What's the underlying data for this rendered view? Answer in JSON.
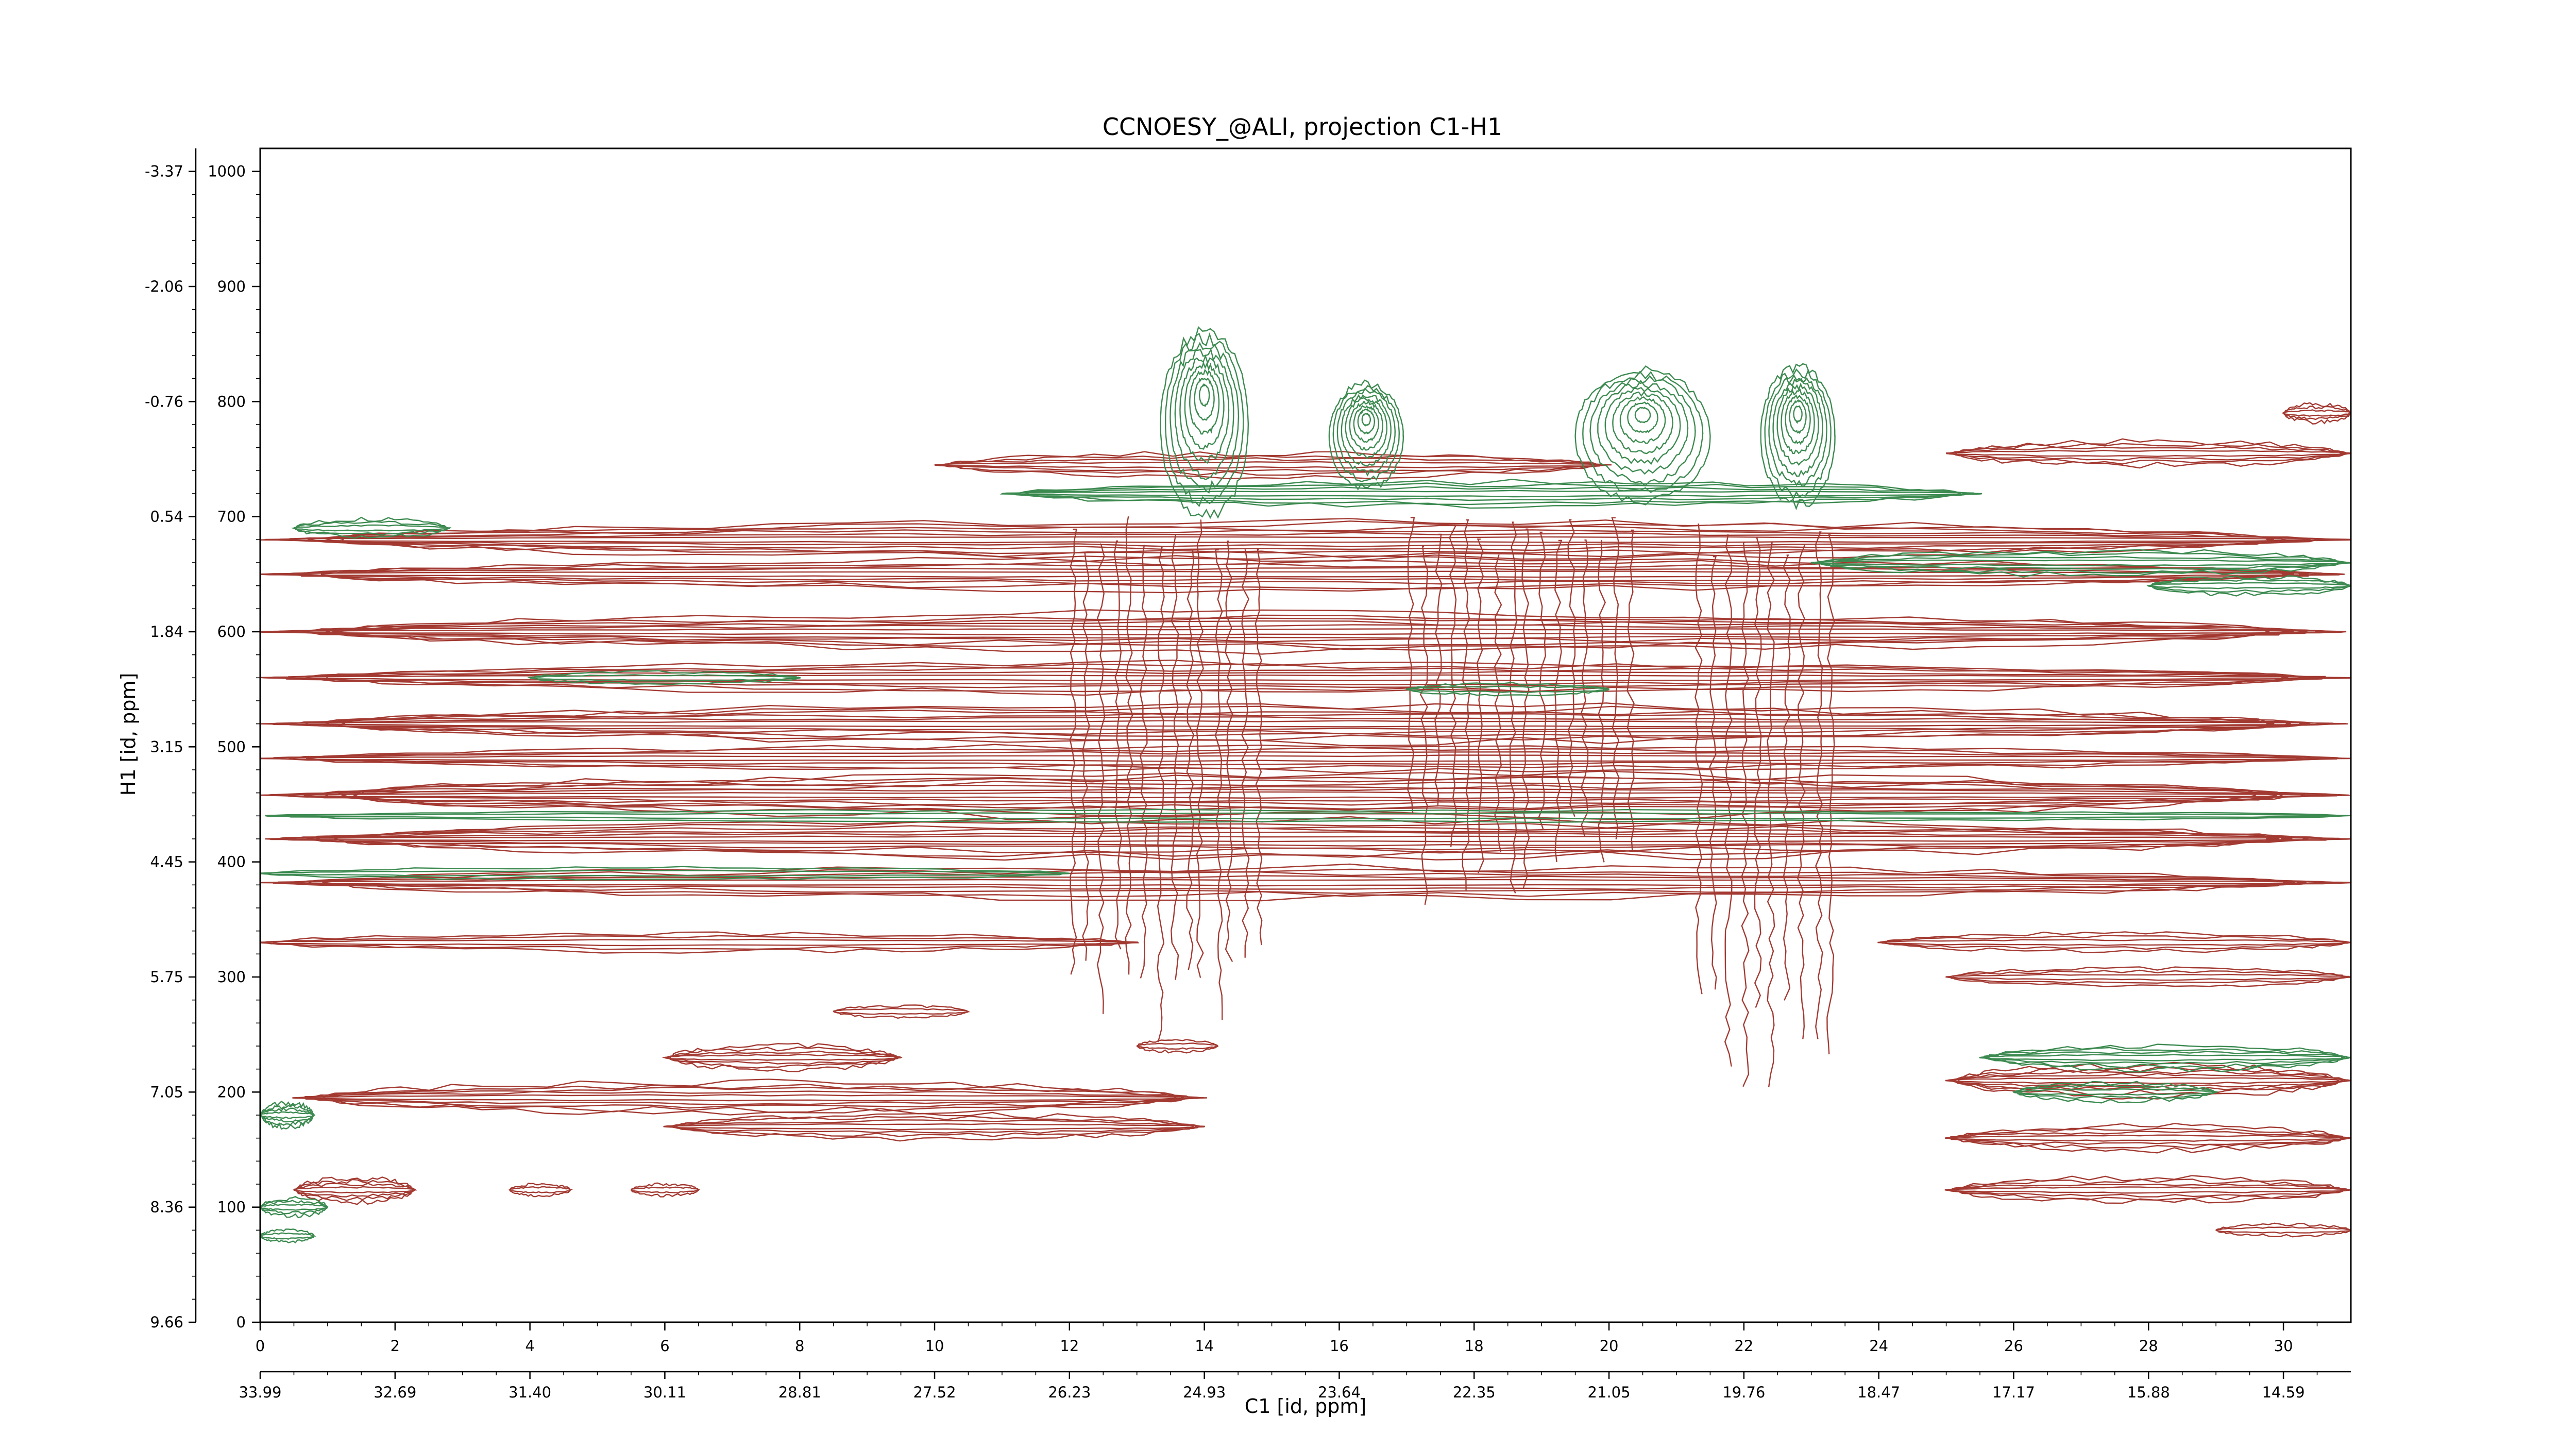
{
  "chart_data": {
    "type": "contour",
    "title": "CCNOESY_@ALI, projection C1-H1",
    "xlabel": "C1 [id, ppm]",
    "ylabel": "H1 [id, ppm]",
    "xlim": [
      0,
      31
    ],
    "ylim": [
      0,
      1020
    ],
    "x_ticks": [
      "0",
      "2",
      "4",
      "6",
      "8",
      "10",
      "12",
      "14",
      "16",
      "18",
      "20",
      "22",
      "24",
      "26",
      "28",
      "30"
    ],
    "x_ppm_ticks": [
      "33.99",
      "32.69",
      "31.40",
      "30.11",
      "28.81",
      "27.52",
      "26.23",
      "24.93",
      "23.64",
      "22.35",
      "21.05",
      "19.76",
      "18.47",
      "17.17",
      "15.88",
      "14.59"
    ],
    "y_ticks": [
      "0",
      "100",
      "200",
      "300",
      "400",
      "500",
      "600",
      "700",
      "800",
      "900",
      "1000"
    ],
    "y_ppm_ticks": [
      "9.66",
      "8.36",
      "7.05",
      "5.75",
      "4.45",
      "3.15",
      "1.84",
      "0.54",
      "-0.76",
      "-2.06",
      "-3.37"
    ],
    "grid": false,
    "legend": "none",
    "colors": {
      "positive": "#a33a32",
      "negative": "#3c8a50"
    },
    "series": [
      {
        "name": "",
        "sign": "positive",
        "bands": [
          {
            "y": 458,
            "x0": 0,
            "x1": 31,
            "levels": 7
          },
          {
            "y": 420,
            "x0": 0,
            "x1": 31,
            "levels": 6
          },
          {
            "y": 382,
            "x0": 0,
            "x1": 31,
            "levels": 5
          },
          {
            "y": 680,
            "x0": 0,
            "x1": 31,
            "levels": 6
          },
          {
            "y": 650,
            "x0": 0,
            "x1": 31,
            "levels": 5
          },
          {
            "y": 600,
            "x0": 0,
            "x1": 31,
            "levels": 6
          },
          {
            "y": 560,
            "x0": 0,
            "x1": 31,
            "levels": 5
          },
          {
            "y": 520,
            "x0": 0,
            "x1": 31,
            "levels": 6
          },
          {
            "y": 490,
            "x0": 0,
            "x1": 31,
            "levels": 4
          },
          {
            "y": 745,
            "x0": 10,
            "x1": 20,
            "levels": 4
          },
          {
            "y": 755,
            "x0": 25,
            "x1": 31,
            "levels": 4
          },
          {
            "y": 790,
            "x0": 30,
            "x1": 31,
            "levels": 3
          },
          {
            "y": 330,
            "x0": 0,
            "x1": 13,
            "levels": 3
          },
          {
            "y": 330,
            "x0": 24,
            "x1": 31,
            "levels": 3
          },
          {
            "y": 300,
            "x0": 25,
            "x1": 31,
            "levels": 3
          },
          {
            "y": 230,
            "x0": 6,
            "x1": 9.5,
            "levels": 4
          },
          {
            "y": 195,
            "x0": 0.5,
            "x1": 14,
            "levels": 5
          },
          {
            "y": 170,
            "x0": 6,
            "x1": 14,
            "levels": 4
          },
          {
            "y": 115,
            "x0": 0.5,
            "x1": 2.3,
            "levels": 4
          },
          {
            "y": 115,
            "x0": 3.7,
            "x1": 4.6,
            "levels": 2
          },
          {
            "y": 115,
            "x0": 5.5,
            "x1": 6.5,
            "levels": 2
          },
          {
            "y": 210,
            "x0": 25,
            "x1": 31,
            "levels": 5
          },
          {
            "y": 160,
            "x0": 25,
            "x1": 31,
            "levels": 4
          },
          {
            "y": 115,
            "x0": 25,
            "x1": 31,
            "levels": 4
          },
          {
            "y": 80,
            "x0": 29,
            "x1": 31,
            "levels": 2
          },
          {
            "y": 270,
            "x0": 8.5,
            "x1": 10.5,
            "levels": 2
          },
          {
            "y": 240,
            "x0": 13,
            "x1": 14.2,
            "levels": 2
          }
        ],
        "stripes": [
          {
            "x0": 12,
            "x1": 15,
            "y0": 240,
            "y1": 700
          },
          {
            "x0": 17,
            "x1": 20.5,
            "y0": 360,
            "y1": 700
          },
          {
            "x0": 21.3,
            "x1": 23.5,
            "y0": 200,
            "y1": 700
          }
        ]
      },
      {
        "name": "",
        "sign": "negative",
        "peaks": [
          {
            "x": 14.0,
            "y": 780,
            "w": 1.3,
            "h": 160
          },
          {
            "x": 16.4,
            "y": 770,
            "w": 1.1,
            "h": 90
          },
          {
            "x": 20.5,
            "y": 770,
            "w": 2.0,
            "h": 115
          },
          {
            "x": 22.8,
            "y": 770,
            "w": 1.1,
            "h": 120
          }
        ],
        "bands": [
          {
            "y": 720,
            "x0": 11,
            "x1": 25.5,
            "levels": 4
          },
          {
            "y": 690,
            "x0": 0.5,
            "x1": 2.8,
            "levels": 3
          },
          {
            "y": 660,
            "x0": 23,
            "x1": 31,
            "levels": 4
          },
          {
            "y": 640,
            "x0": 28,
            "x1": 31,
            "levels": 3
          },
          {
            "y": 440,
            "x0": 0,
            "x1": 31,
            "levels": 2
          },
          {
            "y": 560,
            "x0": 4,
            "x1": 8,
            "levels": 2
          },
          {
            "y": 550,
            "x0": 17,
            "x1": 20,
            "levels": 2
          },
          {
            "y": 180,
            "x0": 0,
            "x1": 0.8,
            "levels": 4
          },
          {
            "y": 230,
            "x0": 25.5,
            "x1": 31,
            "levels": 4
          },
          {
            "y": 200,
            "x0": 26,
            "x1": 29,
            "levels": 3
          },
          {
            "y": 100,
            "x0": 0,
            "x1": 1,
            "levels": 3
          },
          {
            "y": 75,
            "x0": 0,
            "x1": 0.8,
            "levels": 2
          },
          {
            "y": 390,
            "x0": 0,
            "x1": 12,
            "levels": 2
          }
        ]
      }
    ]
  }
}
